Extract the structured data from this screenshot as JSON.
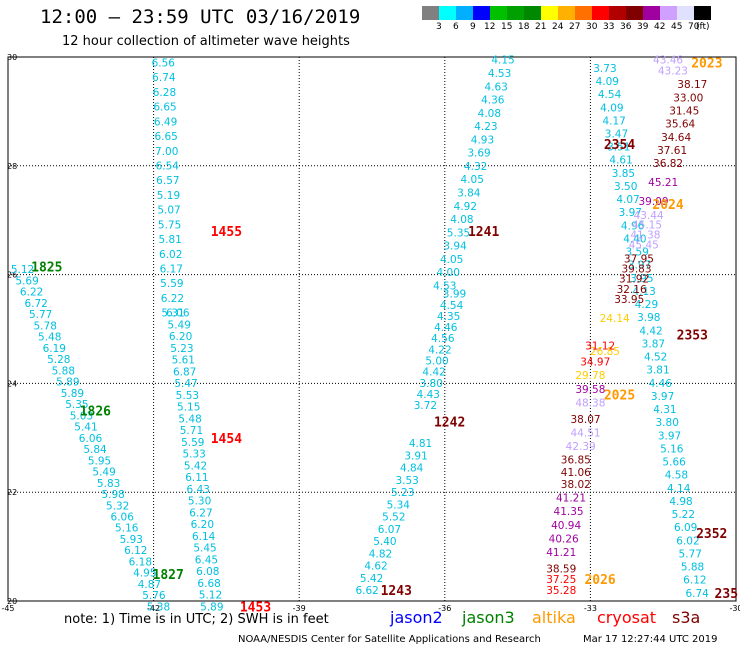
{
  "header": {
    "title": "12:00 — 23:59 UTC 03/16/2019",
    "subtitle": "12 hour collection of altimeter wave heights"
  },
  "legend": {
    "colors": [
      "#808080",
      "#00ffff",
      "#00b0ff",
      "#0000ff",
      "#00c000",
      "#00a000",
      "#008800",
      "#ffff00",
      "#ffb000",
      "#ff7000",
      "#ff0000",
      "#b00000",
      "#800000",
      "#a000a0",
      "#d0a0ff",
      "#e0e0ff",
      "#000000"
    ],
    "labels": [
      "3",
      "6",
      "9",
      "12",
      "15",
      "18",
      "21",
      "24",
      "27",
      "30",
      "33",
      "36",
      "39",
      "42",
      "45",
      "70",
      "(ft)"
    ]
  },
  "axes": {
    "lon_ticks": [
      "-45",
      "-42",
      "-39",
      "-36",
      "-33",
      "-30"
    ],
    "lat_ticks": [
      "30",
      "28",
      "26",
      "24",
      "22",
      "20"
    ]
  },
  "tracks": [
    {
      "time": "1455",
      "color": "#ff0000",
      "lat": 26.8,
      "lon": -40.5
    },
    {
      "time": "1454",
      "color": "#ff0000",
      "lat": 23.0,
      "lon": -40.5
    },
    {
      "time": "1453",
      "color": "#ff0000",
      "lat": 19.9,
      "lon": -39.9
    },
    {
      "time": "1825",
      "color": "#008000",
      "lat": 26.15,
      "lon": -44.2
    },
    {
      "time": "1826",
      "color": "#008000",
      "lat": 23.5,
      "lon": -43.2
    },
    {
      "time": "1827",
      "color": "#008000",
      "lat": 20.5,
      "lon": -41.7
    },
    {
      "time": "1241",
      "color": "#800000",
      "lat": 26.8,
      "lon": -35.2
    },
    {
      "time": "1242",
      "color": "#800000",
      "lat": 23.3,
      "lon": -35.9
    },
    {
      "time": "1243",
      "color": "#800000",
      "lat": 20.2,
      "lon": -37.0
    },
    {
      "time": "2023",
      "color": "#ff9900",
      "lat": 29.9,
      "lon": -30.6
    },
    {
      "time": "2024",
      "color": "#ff9900",
      "lat": 27.3,
      "lon": -31.4
    },
    {
      "time": "2025",
      "color": "#ff9900",
      "lat": 23.8,
      "lon": -32.4
    },
    {
      "time": "2026",
      "color": "#ff9900",
      "lat": 20.4,
      "lon": -32.8
    },
    {
      "time": "2354",
      "color": "#800000",
      "lat": 28.4,
      "lon": -32.4
    },
    {
      "time": "2353",
      "color": "#800000",
      "lat": 24.9,
      "lon": -30.9
    },
    {
      "time": "2352",
      "color": "#800000",
      "lat": 21.25,
      "lon": -30.5
    },
    {
      "time": "235",
      "color": "#800000",
      "lat": 20.15,
      "lon": -30.2
    }
  ],
  "columns": [
    {
      "color": "#00c0e0",
      "lat_start": 29.9,
      "lat_end": 25.3,
      "lon_start": -41.8,
      "lon_end": -41.6,
      "values": [
        "6.56",
        "6.74",
        "6.28",
        "6.65",
        "6.49",
        "6.65",
        "7.00",
        "6.54",
        "6.57",
        "5.19",
        "5.07",
        "5.75",
        "5.81",
        "6.02",
        "6.17",
        "5.59",
        "6.22",
        "5.31"
      ]
    },
    {
      "color": "#00c0e0",
      "lat_start": 25.3,
      "lat_end": 19.9,
      "lon_start": -41.5,
      "lon_end": -40.8,
      "values": [
        "6.06",
        "5.49",
        "6.20",
        "5.23",
        "5.61",
        "6.87",
        "5.47",
        "5.53",
        "5.15",
        "5.48",
        "5.71",
        "5.59",
        "5.33",
        "5.42",
        "6.11",
        "6.43",
        "5.30",
        "6.27",
        "6.20",
        "6.14",
        "5.45",
        "6.45",
        "6.08",
        "6.68",
        "5.12",
        "5.89"
      ]
    },
    {
      "color": "#00c0e0",
      "lat_start": 26.1,
      "lat_end": 19.9,
      "lon_start": -44.7,
      "lon_end": -41.9,
      "values": [
        "5.12",
        "5.69",
        "6.22",
        "6.72",
        "5.77",
        "5.78",
        "5.48",
        "6.19",
        "5.28",
        "5.88",
        "5.89",
        "5.89",
        "5.35",
        "5.03",
        "5.41",
        "6.06",
        "5.84",
        "5.95",
        "5.49",
        "5.83",
        "5.98",
        "5.32",
        "6.06",
        "5.16",
        "5.93",
        "6.12",
        "6.18",
        "4.95",
        "4.87",
        "5.76",
        "5.38"
      ]
    },
    {
      "color": "#00c0e0",
      "lat_start": 29.95,
      "lat_end": 25.8,
      "lon_start": -34.8,
      "lon_end": -36.0,
      "values": [
        "4.15",
        "4.53",
        "4.63",
        "4.36",
        "4.08",
        "4.23",
        "4.93",
        "3.69",
        "4.32",
        "4.05",
        "3.84",
        "4.92",
        "4.08",
        "5.35",
        "3.94",
        "4.05",
        "4.00",
        "4.53"
      ]
    },
    {
      "color": "#00c0e0",
      "lat_start": 25.65,
      "lat_end": 23.6,
      "lon_start": -35.8,
      "lon_end": -36.4,
      "values": [
        "3.99",
        "4.54",
        "4.35",
        "4.46",
        "4.56",
        "4.22",
        "5.00",
        "4.42",
        "3.80",
        "4.43",
        "3.72"
      ]
    },
    {
      "color": "#00c0e0",
      "lat_start": 22.9,
      "lat_end": 20.2,
      "lon_start": -36.5,
      "lon_end": -37.6,
      "values": [
        "4.81",
        "3.91",
        "4.84",
        "3.53",
        "5.23",
        "5.34",
        "5.52",
        "6.07",
        "5.40",
        "4.82",
        "4.62",
        "5.42",
        "6.62"
      ]
    },
    {
      "color": "#00c0e0",
      "lat_start": 29.8,
      "lat_end": 20.15,
      "lon_start": -32.7,
      "lon_end": -30.8,
      "values": [
        "3.73",
        "4.09",
        "4.54",
        "4.09",
        "4.17",
        "3.47",
        "3.51",
        "4.61",
        "3.85",
        "3.50",
        "4.07",
        "3.97",
        "4.96",
        "4.40",
        "3.59",
        "3.97",
        "3.95",
        "4.13",
        "4.29",
        "3.98",
        "4.42",
        "3.87",
        "4.52",
        "3.81",
        "4.46",
        "3.97",
        "4.31",
        "3.80",
        "3.97",
        "5.16",
        "5.66",
        "4.58",
        "4.14",
        "4.98",
        "5.22",
        "6.09",
        "6.02",
        "5.77",
        "5.88",
        "6.12",
        "6.74"
      ]
    },
    {
      "color": "#800000",
      "lat_start": 29.5,
      "lat_end": 28.05,
      "lon_start": -30.9,
      "lon_end": -31.4,
      "values": [
        "38.17",
        "33.00",
        "31.45",
        "35.64",
        "34.64",
        "37.61",
        "36.82"
      ]
    },
    {
      "color": "#c0a0ff",
      "lat_start": 29.95,
      "lat_end": 29.75,
      "lon_start": -31.4,
      "lon_end": -31.3,
      "values": [
        "43.46",
        "43.23"
      ]
    },
    {
      "color": "#a000a0",
      "lat_start": 27.7,
      "lat_end": 27.35,
      "lon_start": -31.5,
      "lon_end": -31.7,
      "values": [
        "45.21",
        "39.09"
      ]
    },
    {
      "color": "#c0a0ff",
      "lat_start": 27.1,
      "lat_end": 26.55,
      "lon_start": -31.8,
      "lon_end": -31.9,
      "values": [
        "43.44",
        "45.15",
        "41.38",
        "45.45"
      ]
    },
    {
      "color": "#800000",
      "lat_start": 26.3,
      "lat_end": 25.55,
      "lon_start": -32.0,
      "lon_end": -32.2,
      "values": [
        "37.95",
        "39.83",
        "31.92",
        "32.16",
        "33.95"
      ]
    },
    {
      "color": "#ffcc00",
      "lat_start": 25.2,
      "lat_end": 24.6,
      "lon_start": -32.5,
      "lon_end": -32.7,
      "values": [
        "24.14",
        "26.85"
      ]
    },
    {
      "color": "#ff0000",
      "lat_start": 24.7,
      "lat_end": 24.4,
      "lon_start": -32.8,
      "lon_end": -32.9,
      "values": [
        "31.12",
        "34.97"
      ]
    },
    {
      "color": "#ffcc00",
      "lat_start": 24.15,
      "lat_end": 24.15,
      "lon_start": -33.0,
      "lon_end": -33.0,
      "values": [
        "29.78"
      ]
    },
    {
      "color": "#a000a0",
      "lat_start": 23.9,
      "lat_end": 23.9,
      "lon_start": -33.0,
      "lon_end": -33.0,
      "values": [
        "39.58"
      ]
    },
    {
      "color": "#c0a0ff",
      "lat_start": 23.65,
      "lat_end": 23.65,
      "lon_start": -33.0,
      "lon_end": -33.0,
      "values": [
        "48.38"
      ]
    },
    {
      "color": "#800000",
      "lat_start": 23.35,
      "lat_end": 23.35,
      "lon_start": -33.1,
      "lon_end": -33.1,
      "values": [
        "38.07"
      ]
    },
    {
      "color": "#c0a0ff",
      "lat_start": 23.1,
      "lat_end": 22.85,
      "lon_start": -33.1,
      "lon_end": -33.2,
      "values": [
        "44.51",
        "42.39"
      ]
    },
    {
      "color": "#800000",
      "lat_start": 22.6,
      "lat_end": 22.15,
      "lon_start": -33.3,
      "lon_end": -33.3,
      "values": [
        "36.85",
        "41.06",
        "38.02"
      ]
    },
    {
      "color": "#a000a0",
      "lat_start": 21.9,
      "lat_end": 20.9,
      "lon_start": -33.4,
      "lon_end": -33.6,
      "values": [
        "41.21",
        "41.35",
        "40.94",
        "40.26",
        "41.21"
      ]
    },
    {
      "color": "#800000",
      "lat_start": 20.6,
      "lat_end": 20.6,
      "lon_start": -33.6,
      "lon_end": -33.6,
      "values": [
        "38.59"
      ]
    },
    {
      "color": "#ff0000",
      "lat_start": 20.4,
      "lat_end": 20.2,
      "lon_start": -33.6,
      "lon_end": -33.6,
      "values": [
        "37.25",
        "35.28"
      ]
    }
  ],
  "footnote": "note:  1) Time is in UTC; 2) SWH is in feet",
  "satellites": [
    {
      "name": "jason2",
      "color": "#0000ff"
    },
    {
      "name": "jason3",
      "color": "#008000"
    },
    {
      "name": "altika",
      "color": "#ff9900"
    },
    {
      "name": "cryosat",
      "color": "#ff0000"
    },
    {
      "name": "s3a",
      "color": "#800000"
    }
  ],
  "credit": "NOAA/NESDIS Center for Satellite Applications and Research",
  "timestamp": "Mar 17 12:27:44 UTC 2019"
}
